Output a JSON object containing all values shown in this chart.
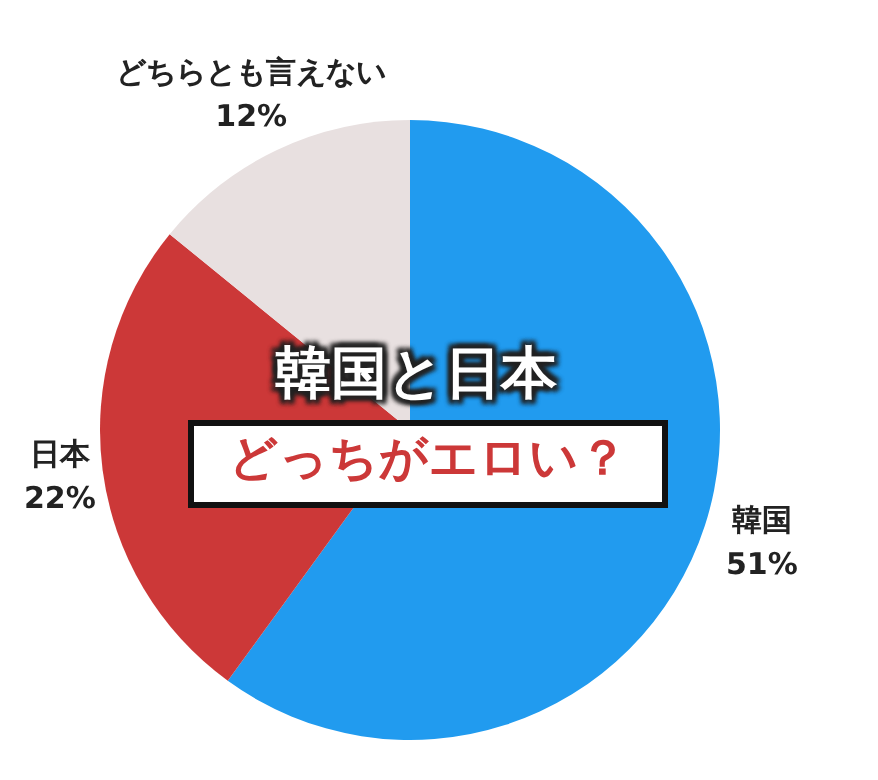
{
  "chart_data": {
    "type": "pie",
    "title": "韓国と日本",
    "subtitle": "どっちがエロい？",
    "categories": [
      "韓国",
      "日本",
      "どちらとも言えない"
    ],
    "values": [
      51,
      22,
      12
    ],
    "value_labels": [
      "51%",
      "22%",
      "12%"
    ],
    "colors": [
      "#219bef",
      "#cc3838",
      "#e8e0e0"
    ],
    "legend": false
  }
}
